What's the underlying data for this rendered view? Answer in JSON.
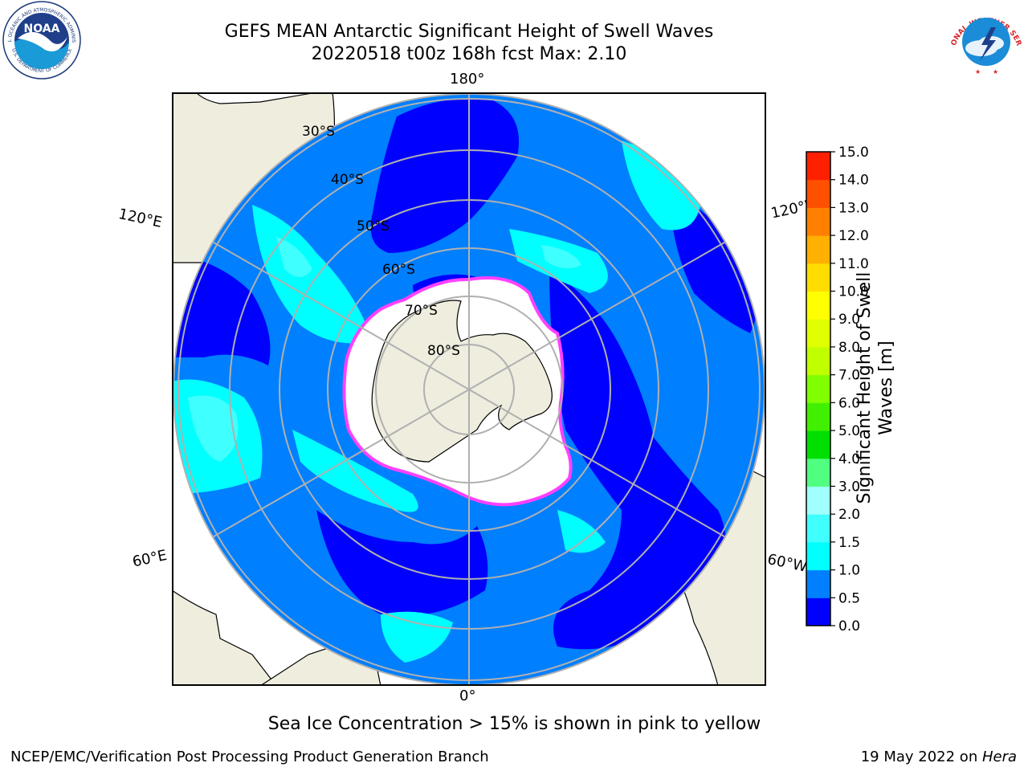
{
  "title": {
    "line1": "GEFS MEAN Antarctic Significant Height of Swell Waves",
    "line2": "20220518 t00z 168h fcst   Max: 2.10"
  },
  "logos": {
    "left": {
      "name": "noaa-logo",
      "text_top": "NATIONAL OCEANIC AND ATMOSPHERIC ADMINISTRATION",
      "text_center": "NOAA",
      "text_bottom": "U.S. DEPARTMENT OF COMMERCE"
    },
    "right": {
      "name": "nws-logo",
      "text": "NATIONAL WEATHER SERVICE"
    }
  },
  "map": {
    "projection": "south-polar-stereographic",
    "longitude_labels": {
      "top": "180°",
      "bottom": "0°",
      "upper_left": "120°E",
      "upper_right": "120°W",
      "lower_left": "60°E",
      "lower_right": "60°W"
    },
    "latitude_labels": [
      "30°S",
      "40°S",
      "50°S",
      "60°S",
      "70°S",
      "80°S"
    ],
    "colors": {
      "ocean_bin_0": "#0000ff",
      "ocean_bin_1": "#007fff",
      "ocean_bin_2": "#00ffff",
      "ocean_bin_3": "#40ffff",
      "land": "#efedde",
      "ice": "#ffffff",
      "ice_edge": "#ff40ff",
      "grid": "#b0b0b0"
    }
  },
  "colorbar": {
    "label_line1": "Significant Height of Swell",
    "label_line2": "Waves [m]",
    "ticks": [
      "0.0",
      "0.5",
      "1.0",
      "1.5",
      "2.0",
      "3.0",
      "4.0",
      "5.0",
      "6.0",
      "7.0",
      "8.0",
      "9.0",
      "10.0",
      "11.0",
      "12.0",
      "13.0",
      "14.0",
      "15.0"
    ],
    "colors": [
      "#0000ff",
      "#007fff",
      "#00ffff",
      "#40ffff",
      "#a0ffff",
      "#50ff80",
      "#00e000",
      "#40f000",
      "#80ff00",
      "#c0ff00",
      "#e0ff00",
      "#ffff00",
      "#ffdd00",
      "#ffb000",
      "#ff8000",
      "#ff5000",
      "#ff2000"
    ]
  },
  "note": "Sea Ice Concentration > 15% is shown in pink to yellow",
  "footer": {
    "left": "NCEP/EMC/Verification Post Processing Product Generation Branch",
    "right_prefix": "19 May 2022 on ",
    "right_host": "Hera"
  }
}
